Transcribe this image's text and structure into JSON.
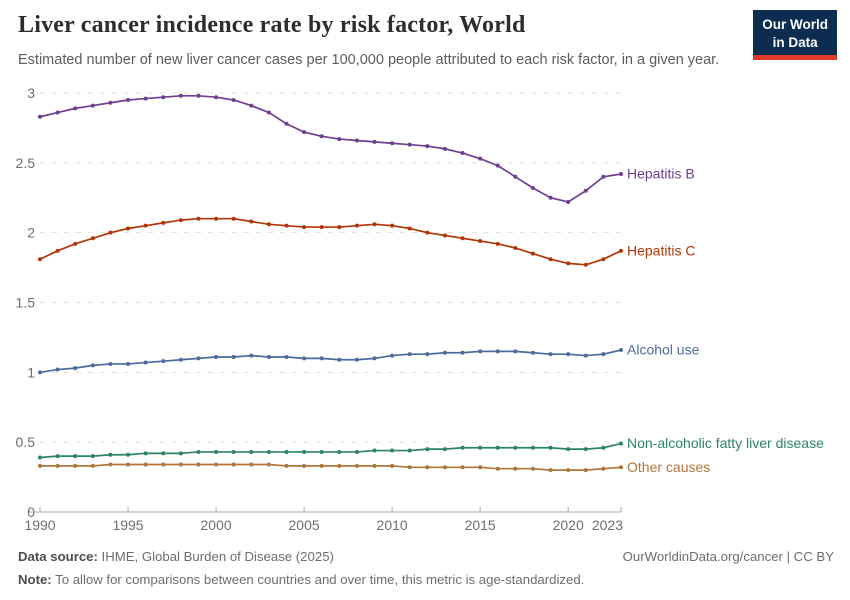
{
  "header": {
    "title": "Liver cancer incidence rate by risk factor, World",
    "subtitle": "Estimated number of new liver cancer cases per 100,000 people attributed to each risk factor, in a given year.",
    "logo": {
      "line1": "Our World",
      "line2": "in Data"
    }
  },
  "footer": {
    "datasource_label": "Data source:",
    "datasource_value": " IHME, Global Burden of Disease (2025)",
    "note_label": "Note:",
    "note_value": " To allow for comparisons between countries and over time, this metric is age-standardized.",
    "rights": "OurWorldinData.org/cancer | CC BY"
  },
  "colors": {
    "grid": "#dedede",
    "axis": "#a8a8a8",
    "tick_text": "#6e6e6e",
    "logo_bg": "#0d2d50",
    "logo_bar": "#dc3a2b"
  },
  "chart_data": {
    "type": "line",
    "title": "Liver cancer incidence rate by risk factor, World",
    "xlabel": "",
    "ylabel": "",
    "grid": "horizontal-dashed",
    "legend": "end-of-line-labels",
    "ylim": [
      0,
      3
    ],
    "yticks": [
      0,
      0.5,
      1,
      1.5,
      2,
      2.5,
      3
    ],
    "xticks": [
      1990,
      1995,
      2000,
      2005,
      2010,
      2015,
      2020,
      2023
    ],
    "x": [
      1990,
      1991,
      1992,
      1993,
      1994,
      1995,
      1996,
      1997,
      1998,
      1999,
      2000,
      2001,
      2002,
      2003,
      2004,
      2005,
      2006,
      2007,
      2008,
      2009,
      2010,
      2011,
      2012,
      2013,
      2014,
      2015,
      2016,
      2017,
      2018,
      2019,
      2020,
      2021,
      2022,
      2023
    ],
    "series": [
      {
        "name": "Hepatitis B",
        "color": "#6d3e91",
        "values": [
          2.83,
          2.86,
          2.89,
          2.91,
          2.93,
          2.95,
          2.96,
          2.97,
          2.98,
          2.98,
          2.97,
          2.95,
          2.91,
          2.86,
          2.78,
          2.72,
          2.69,
          2.67,
          2.66,
          2.65,
          2.64,
          2.63,
          2.62,
          2.6,
          2.57,
          2.53,
          2.48,
          2.4,
          2.32,
          2.25,
          2.22,
          2.3,
          2.4,
          2.42
        ]
      },
      {
        "name": "Hepatitis C",
        "color": "#b13507",
        "values": [
          1.81,
          1.87,
          1.92,
          1.96,
          2.0,
          2.03,
          2.05,
          2.07,
          2.09,
          2.1,
          2.1,
          2.1,
          2.08,
          2.06,
          2.05,
          2.04,
          2.04,
          2.04,
          2.05,
          2.06,
          2.05,
          2.03,
          2.0,
          1.98,
          1.96,
          1.94,
          1.92,
          1.89,
          1.85,
          1.81,
          1.78,
          1.77,
          1.81,
          1.87
        ]
      },
      {
        "name": "Alcohol use",
        "color": "#4c6a9c",
        "values": [
          1.0,
          1.02,
          1.03,
          1.05,
          1.06,
          1.06,
          1.07,
          1.08,
          1.09,
          1.1,
          1.11,
          1.11,
          1.12,
          1.11,
          1.11,
          1.1,
          1.1,
          1.09,
          1.09,
          1.1,
          1.12,
          1.13,
          1.13,
          1.14,
          1.14,
          1.15,
          1.15,
          1.15,
          1.14,
          1.13,
          1.13,
          1.12,
          1.13,
          1.16
        ]
      },
      {
        "name": "Non-alcoholic fatty liver disease",
        "color": "#2c8465",
        "values": [
          0.39,
          0.4,
          0.4,
          0.4,
          0.41,
          0.41,
          0.42,
          0.42,
          0.42,
          0.43,
          0.43,
          0.43,
          0.43,
          0.43,
          0.43,
          0.43,
          0.43,
          0.43,
          0.43,
          0.44,
          0.44,
          0.44,
          0.45,
          0.45,
          0.46,
          0.46,
          0.46,
          0.46,
          0.46,
          0.46,
          0.45,
          0.45,
          0.46,
          0.49
        ]
      },
      {
        "name": "Other causes",
        "color": "#b0743c",
        "values": [
          0.33,
          0.33,
          0.33,
          0.33,
          0.34,
          0.34,
          0.34,
          0.34,
          0.34,
          0.34,
          0.34,
          0.34,
          0.34,
          0.34,
          0.33,
          0.33,
          0.33,
          0.33,
          0.33,
          0.33,
          0.33,
          0.32,
          0.32,
          0.32,
          0.32,
          0.32,
          0.31,
          0.31,
          0.31,
          0.3,
          0.3,
          0.3,
          0.31,
          0.32
        ]
      }
    ]
  }
}
